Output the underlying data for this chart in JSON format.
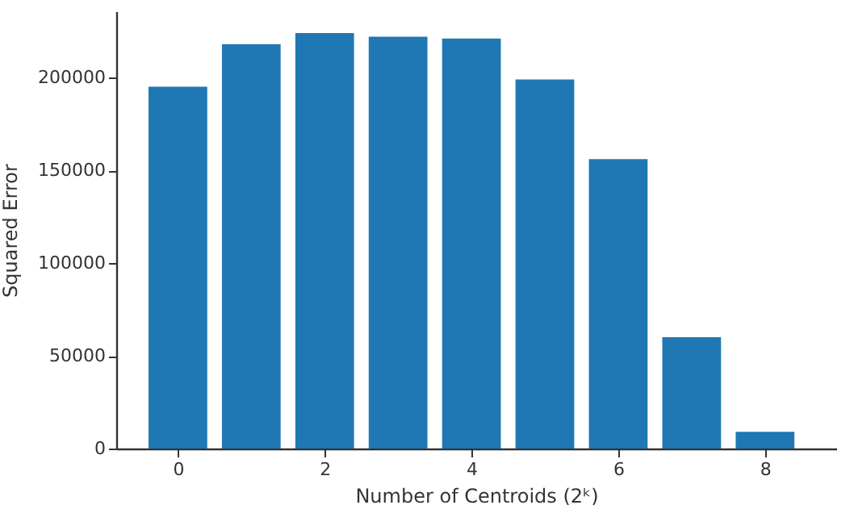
{
  "chart_data": {
    "type": "bar",
    "xlabel": "Number of Centroids (2ᵏ)",
    "ylabel": "Squared Error",
    "x": [
      0,
      1,
      2,
      3,
      4,
      5,
      6,
      7,
      8
    ],
    "values": [
      195000,
      218000,
      224000,
      222000,
      221000,
      199000,
      156000,
      60000,
      9000
    ],
    "color": "#1f77b4",
    "xlim": [
      -0.84,
      8.97
    ],
    "xticks": [
      0,
      2,
      4,
      6,
      8
    ],
    "ylim": [
      0,
      235700
    ],
    "yticks": [
      0,
      50000,
      100000,
      150000,
      200000
    ],
    "grid": false
  }
}
